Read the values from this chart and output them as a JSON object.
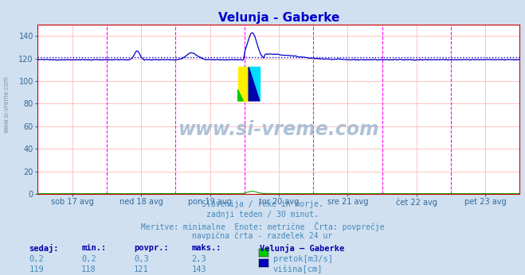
{
  "title": "Velunja - Gaberke",
  "title_color": "#0000cc",
  "bg_color": "#d0e0f0",
  "plot_bg_color": "#ffffff",
  "ylim": [
    0,
    150
  ],
  "yticks": [
    0,
    20,
    40,
    60,
    80,
    100,
    120,
    140
  ],
  "grid_color": "#ffaaaa",
  "x_labels": [
    "sob 17 avg",
    "ned 18 avg",
    "pon 19 avg",
    "tor 20 avg",
    "sre 21 avg",
    "čet 22 avg",
    "pet 23 avg"
  ],
  "x_label_color": "#336699",
  "tick_color": "#336699",
  "watermark_text": "www.si-vreme.com",
  "watermark_color": "#a0b8d0",
  "subtitle_lines": [
    "Slovenija / reke in morje.",
    "zadnji teden / 30 minut.",
    "Meritve: minimalne  Enote: metrične  Črta: povprečje",
    "navpična črta - razdelek 24 ur"
  ],
  "subtitle_color": "#4488bb",
  "table_headers": [
    "sedaj:",
    "min.:",
    "povpr.:",
    "maks.:",
    "Velunja – Gaberke"
  ],
  "table_rows": [
    [
      "0,2",
      "0,2",
      "0,3",
      "2,3",
      "pretok[m3/s]",
      "#00cc00"
    ],
    [
      "119",
      "118",
      "121",
      "143",
      "višina[cm]",
      "#0000bb"
    ]
  ],
  "table_color": "#4488bb",
  "table_bold_color": "#0000aa",
  "num_points": 336,
  "avg_visina": 121,
  "visina_color": "#0000cc",
  "pretok_color": "#00aa00",
  "avg_line_color": "#0000dd",
  "vline_color": "#ff00ff",
  "border_color": "#cc0000",
  "left_text_color": "#7799aa"
}
